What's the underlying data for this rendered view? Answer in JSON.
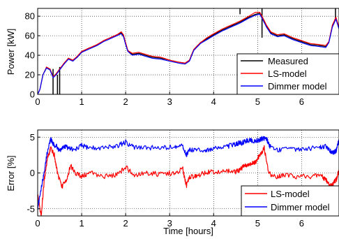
{
  "chart_data": [
    {
      "type": "line",
      "xlabel": "",
      "ylabel": "Power [kW]",
      "xlim": [
        0,
        6.85
      ],
      "ylim": [
        0,
        88
      ],
      "xticks": [
        0,
        1,
        2,
        3,
        4,
        5,
        6
      ],
      "xtick_labels": [
        "0",
        "1",
        "2",
        "3",
        "4",
        "5",
        "6"
      ],
      "yticks": [
        0,
        20,
        40,
        60,
        80
      ],
      "ytick_labels": [
        "0",
        "20",
        "40",
        "60",
        "80"
      ],
      "grid": true,
      "legend_position": "bottom-right",
      "series": [
        {
          "name": "Measured",
          "color": "#000000",
          "x": [
            0,
            0.05,
            0.12,
            0.2,
            0.28,
            0.35,
            0.42,
            0.5,
            0.6,
            0.7,
            0.8,
            0.9,
            1.0,
            1.1,
            1.2,
            1.35,
            1.5,
            1.65,
            1.8,
            1.9,
            1.95,
            2.0,
            2.05,
            2.15,
            2.3,
            2.45,
            2.6,
            2.8,
            3.0,
            3.2,
            3.35,
            3.45,
            3.55,
            3.7,
            3.85,
            4.0,
            4.2,
            4.4,
            4.6,
            4.8,
            4.95,
            5.05,
            5.1,
            5.2,
            5.3,
            5.45,
            5.6,
            5.8,
            6.0,
            6.2,
            6.4,
            6.55,
            6.62,
            6.7,
            6.78,
            6.85
          ],
          "y": [
            0,
            5,
            20,
            27,
            26,
            18,
            21,
            26,
            31,
            37,
            35,
            38,
            43,
            46,
            48,
            50,
            55,
            58,
            61,
            63,
            60,
            52,
            44,
            41,
            42,
            40,
            38,
            37,
            35,
            33,
            32,
            35,
            46,
            53,
            57,
            61,
            66,
            70,
            74,
            79,
            82,
            83,
            79,
            70,
            63,
            60,
            61,
            57,
            54,
            51,
            50,
            49,
            54,
            70,
            78,
            68
          ],
          "spikes": [
            [
              0.35,
              0,
              26
            ],
            [
              0.45,
              0,
              20
            ],
            [
              0.5,
              0,
              28
            ],
            [
              4.6,
              82,
              88
            ],
            [
              5.1,
              58,
              88
            ],
            [
              6.77,
              78,
              88
            ]
          ]
        },
        {
          "name": "LS-model",
          "color": "#ff0000",
          "x": [
            0,
            0.05,
            0.12,
            0.2,
            0.28,
            0.35,
            0.42,
            0.5,
            0.6,
            0.7,
            0.8,
            0.9,
            1.0,
            1.1,
            1.2,
            1.35,
            1.5,
            1.65,
            1.8,
            1.9,
            1.95,
            2.0,
            2.05,
            2.15,
            2.3,
            2.45,
            2.6,
            2.8,
            3.0,
            3.2,
            3.35,
            3.45,
            3.55,
            3.7,
            3.85,
            4.0,
            4.2,
            4.4,
            4.6,
            4.8,
            4.95,
            5.05,
            5.1,
            5.2,
            5.3,
            5.45,
            5.6,
            5.8,
            6.0,
            6.2,
            6.4,
            6.55,
            6.62,
            6.7,
            6.78,
            6.85
          ],
          "y": [
            0,
            5,
            20,
            28,
            26,
            18,
            21,
            26,
            32,
            37,
            35,
            39,
            44,
            46,
            48,
            51,
            55,
            58,
            61,
            64,
            61,
            53,
            45,
            42,
            43,
            41,
            39,
            38,
            35,
            33,
            32,
            35,
            46,
            53,
            58,
            62,
            67,
            71,
            75,
            80,
            84,
            84,
            80,
            71,
            64,
            61,
            62,
            58,
            55,
            52,
            51,
            50,
            54,
            71,
            79,
            69
          ]
        },
        {
          "name": "Dimmer model",
          "color": "#0000ff",
          "x": [
            0,
            0.05,
            0.12,
            0.2,
            0.28,
            0.35,
            0.42,
            0.5,
            0.6,
            0.7,
            0.8,
            0.9,
            1.0,
            1.1,
            1.2,
            1.35,
            1.5,
            1.65,
            1.8,
            1.9,
            1.95,
            2.0,
            2.05,
            2.15,
            2.3,
            2.45,
            2.6,
            2.8,
            3.0,
            3.2,
            3.35,
            3.45,
            3.55,
            3.7,
            3.85,
            4.0,
            4.2,
            4.4,
            4.6,
            4.8,
            4.95,
            5.05,
            5.1,
            5.2,
            5.3,
            5.45,
            5.6,
            5.8,
            6.0,
            6.2,
            6.4,
            6.55,
            6.62,
            6.7,
            6.78,
            6.85
          ],
          "y": [
            0,
            5,
            20,
            27,
            25,
            17,
            20,
            25,
            31,
            36,
            34,
            38,
            43,
            45,
            47,
            50,
            54,
            57,
            60,
            62,
            59,
            51,
            44,
            40,
            41,
            39,
            37,
            36,
            34,
            32,
            31,
            34,
            45,
            52,
            56,
            60,
            65,
            69,
            73,
            78,
            81,
            82,
            78,
            69,
            62,
            59,
            60,
            56,
            53,
            50,
            49,
            48,
            53,
            69,
            77,
            67
          ]
        }
      ]
    },
    {
      "type": "line",
      "xlabel": "Time [hours]",
      "ylabel": "Error [%]",
      "xlim": [
        0,
        6.85
      ],
      "ylim": [
        -6,
        6
      ],
      "xticks": [
        0,
        1,
        2,
        3,
        4,
        5,
        6
      ],
      "xtick_labels": [
        "0",
        "1",
        "2",
        "3",
        "4",
        "5",
        "6"
      ],
      "yticks": [
        -5,
        0,
        5
      ],
      "ytick_labels": [
        "-5",
        "0",
        "5"
      ],
      "grid": true,
      "legend_position": "bottom-right",
      "series": [
        {
          "name": "LS-model",
          "color": "#ff0000",
          "x": [
            0,
            0.08,
            0.15,
            0.22,
            0.3,
            0.38,
            0.45,
            0.55,
            0.65,
            0.75,
            0.85,
            1.0,
            1.2,
            1.5,
            1.8,
            2.0,
            2.2,
            2.5,
            2.8,
            3.1,
            3.3,
            3.38,
            3.45,
            3.6,
            3.8,
            4.0,
            4.3,
            4.5,
            4.6,
            4.7,
            4.8,
            4.9,
            4.95,
            5.05,
            5.15,
            5.25,
            5.4,
            5.6,
            5.9,
            6.2,
            6.45,
            6.55,
            6.65,
            6.72,
            6.8,
            6.85
          ],
          "y": [
            -3,
            -6,
            -1,
            2,
            3.5,
            2.5,
            0,
            -2,
            -1,
            1,
            0,
            -0.5,
            0,
            -0.5,
            -0.3,
            0.8,
            -0.3,
            0,
            -0.2,
            0,
            0.5,
            -1.8,
            -0.5,
            -0.5,
            0,
            0.2,
            0.3,
            0.1,
            0.5,
            1,
            1.3,
            1.4,
            1.5,
            2.5,
            3.5,
            0,
            -0.5,
            -0.3,
            -0.5,
            -0.5,
            -0.3,
            -1,
            -1.8,
            -1.5,
            -0.8,
            0.5
          ]
        },
        {
          "name": "Dimmer model",
          "color": "#0000ff",
          "x": [
            0,
            0.08,
            0.15,
            0.22,
            0.3,
            0.35,
            0.42,
            0.5,
            0.6,
            0.7,
            0.8,
            1.0,
            1.2,
            1.5,
            1.8,
            2.0,
            2.2,
            2.5,
            2.8,
            3.1,
            3.3,
            3.38,
            3.45,
            3.6,
            3.8,
            4.0,
            4.3,
            4.5,
            4.58,
            4.65,
            4.75,
            4.85,
            4.95,
            5.05,
            5.1,
            5.2,
            5.3,
            5.5,
            5.8,
            6.1,
            6.4,
            6.55,
            6.62,
            6.7,
            6.78,
            6.85
          ],
          "y": [
            -5,
            -2,
            0,
            3,
            4.8,
            4,
            3.8,
            3,
            3.8,
            3.5,
            3.2,
            3.8,
            3.5,
            3.5,
            3.8,
            4.3,
            3.5,
            3.5,
            3.5,
            3.6,
            3.8,
            2.5,
            3.3,
            3.2,
            3.2,
            3.4,
            3.7,
            4,
            4.2,
            4.2,
            4.5,
            4.5,
            4.5,
            4.6,
            4.8,
            4.8,
            3.5,
            3.2,
            3.3,
            3.4,
            3.5,
            3.8,
            3.2,
            2.8,
            3,
            4.5
          ]
        }
      ]
    }
  ]
}
